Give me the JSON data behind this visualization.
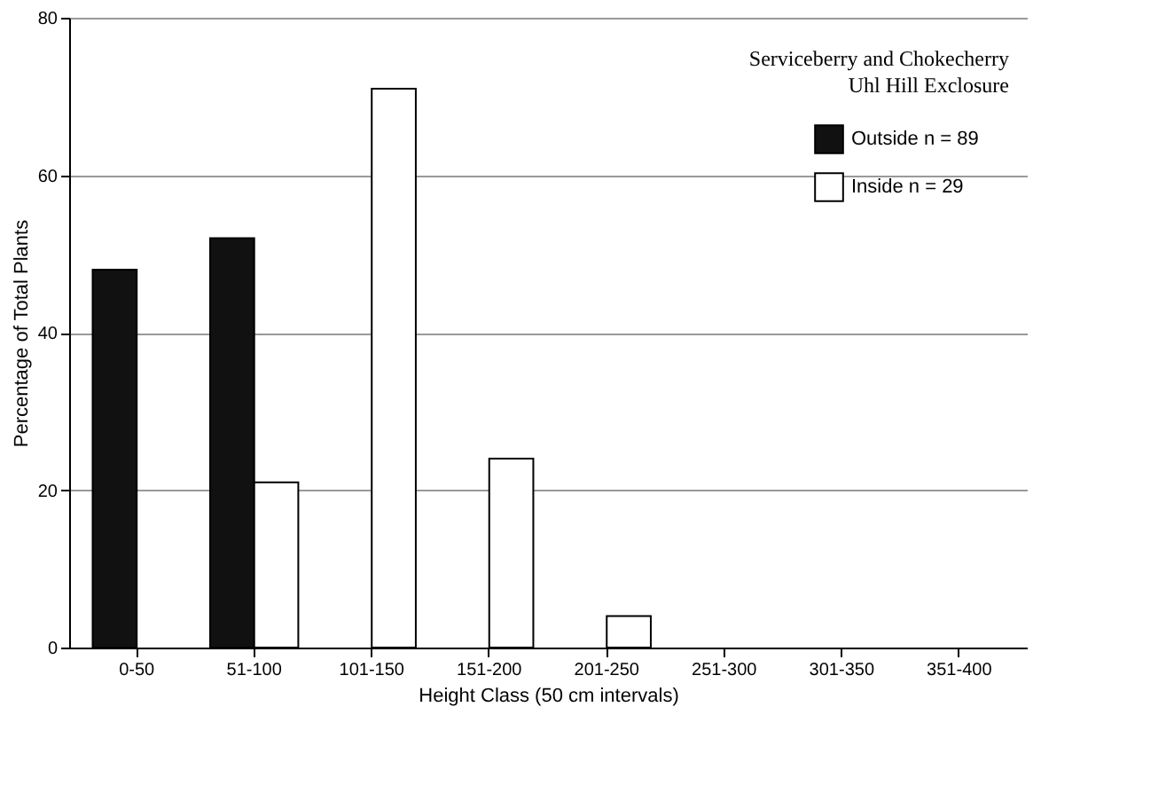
{
  "chart_data": {
    "type": "bar",
    "title": "Serviceberry and Chokecherry",
    "subtitle": "Uhl Hill Exclosure",
    "xlabel": "Height Class (50 cm intervals)",
    "ylabel": "Percentage of Total Plants",
    "categories": [
      "0-50",
      "51-100",
      "101-150",
      "151-200",
      "201-250",
      "251-300",
      "301-350",
      "351-400"
    ],
    "series": [
      {
        "name": "Outside n = 89",
        "color": "#111111",
        "values": [
          48,
          52,
          0,
          0,
          0,
          0,
          0,
          0
        ]
      },
      {
        "name": "Inside n = 29",
        "color": "#ffffff",
        "values": [
          0,
          21,
          71,
          24,
          4,
          0,
          0,
          0
        ]
      }
    ],
    "ylim": [
      0,
      80
    ],
    "yticks": [
      0,
      20,
      40,
      60,
      80
    ],
    "grid": "y",
    "legend": "top right"
  }
}
